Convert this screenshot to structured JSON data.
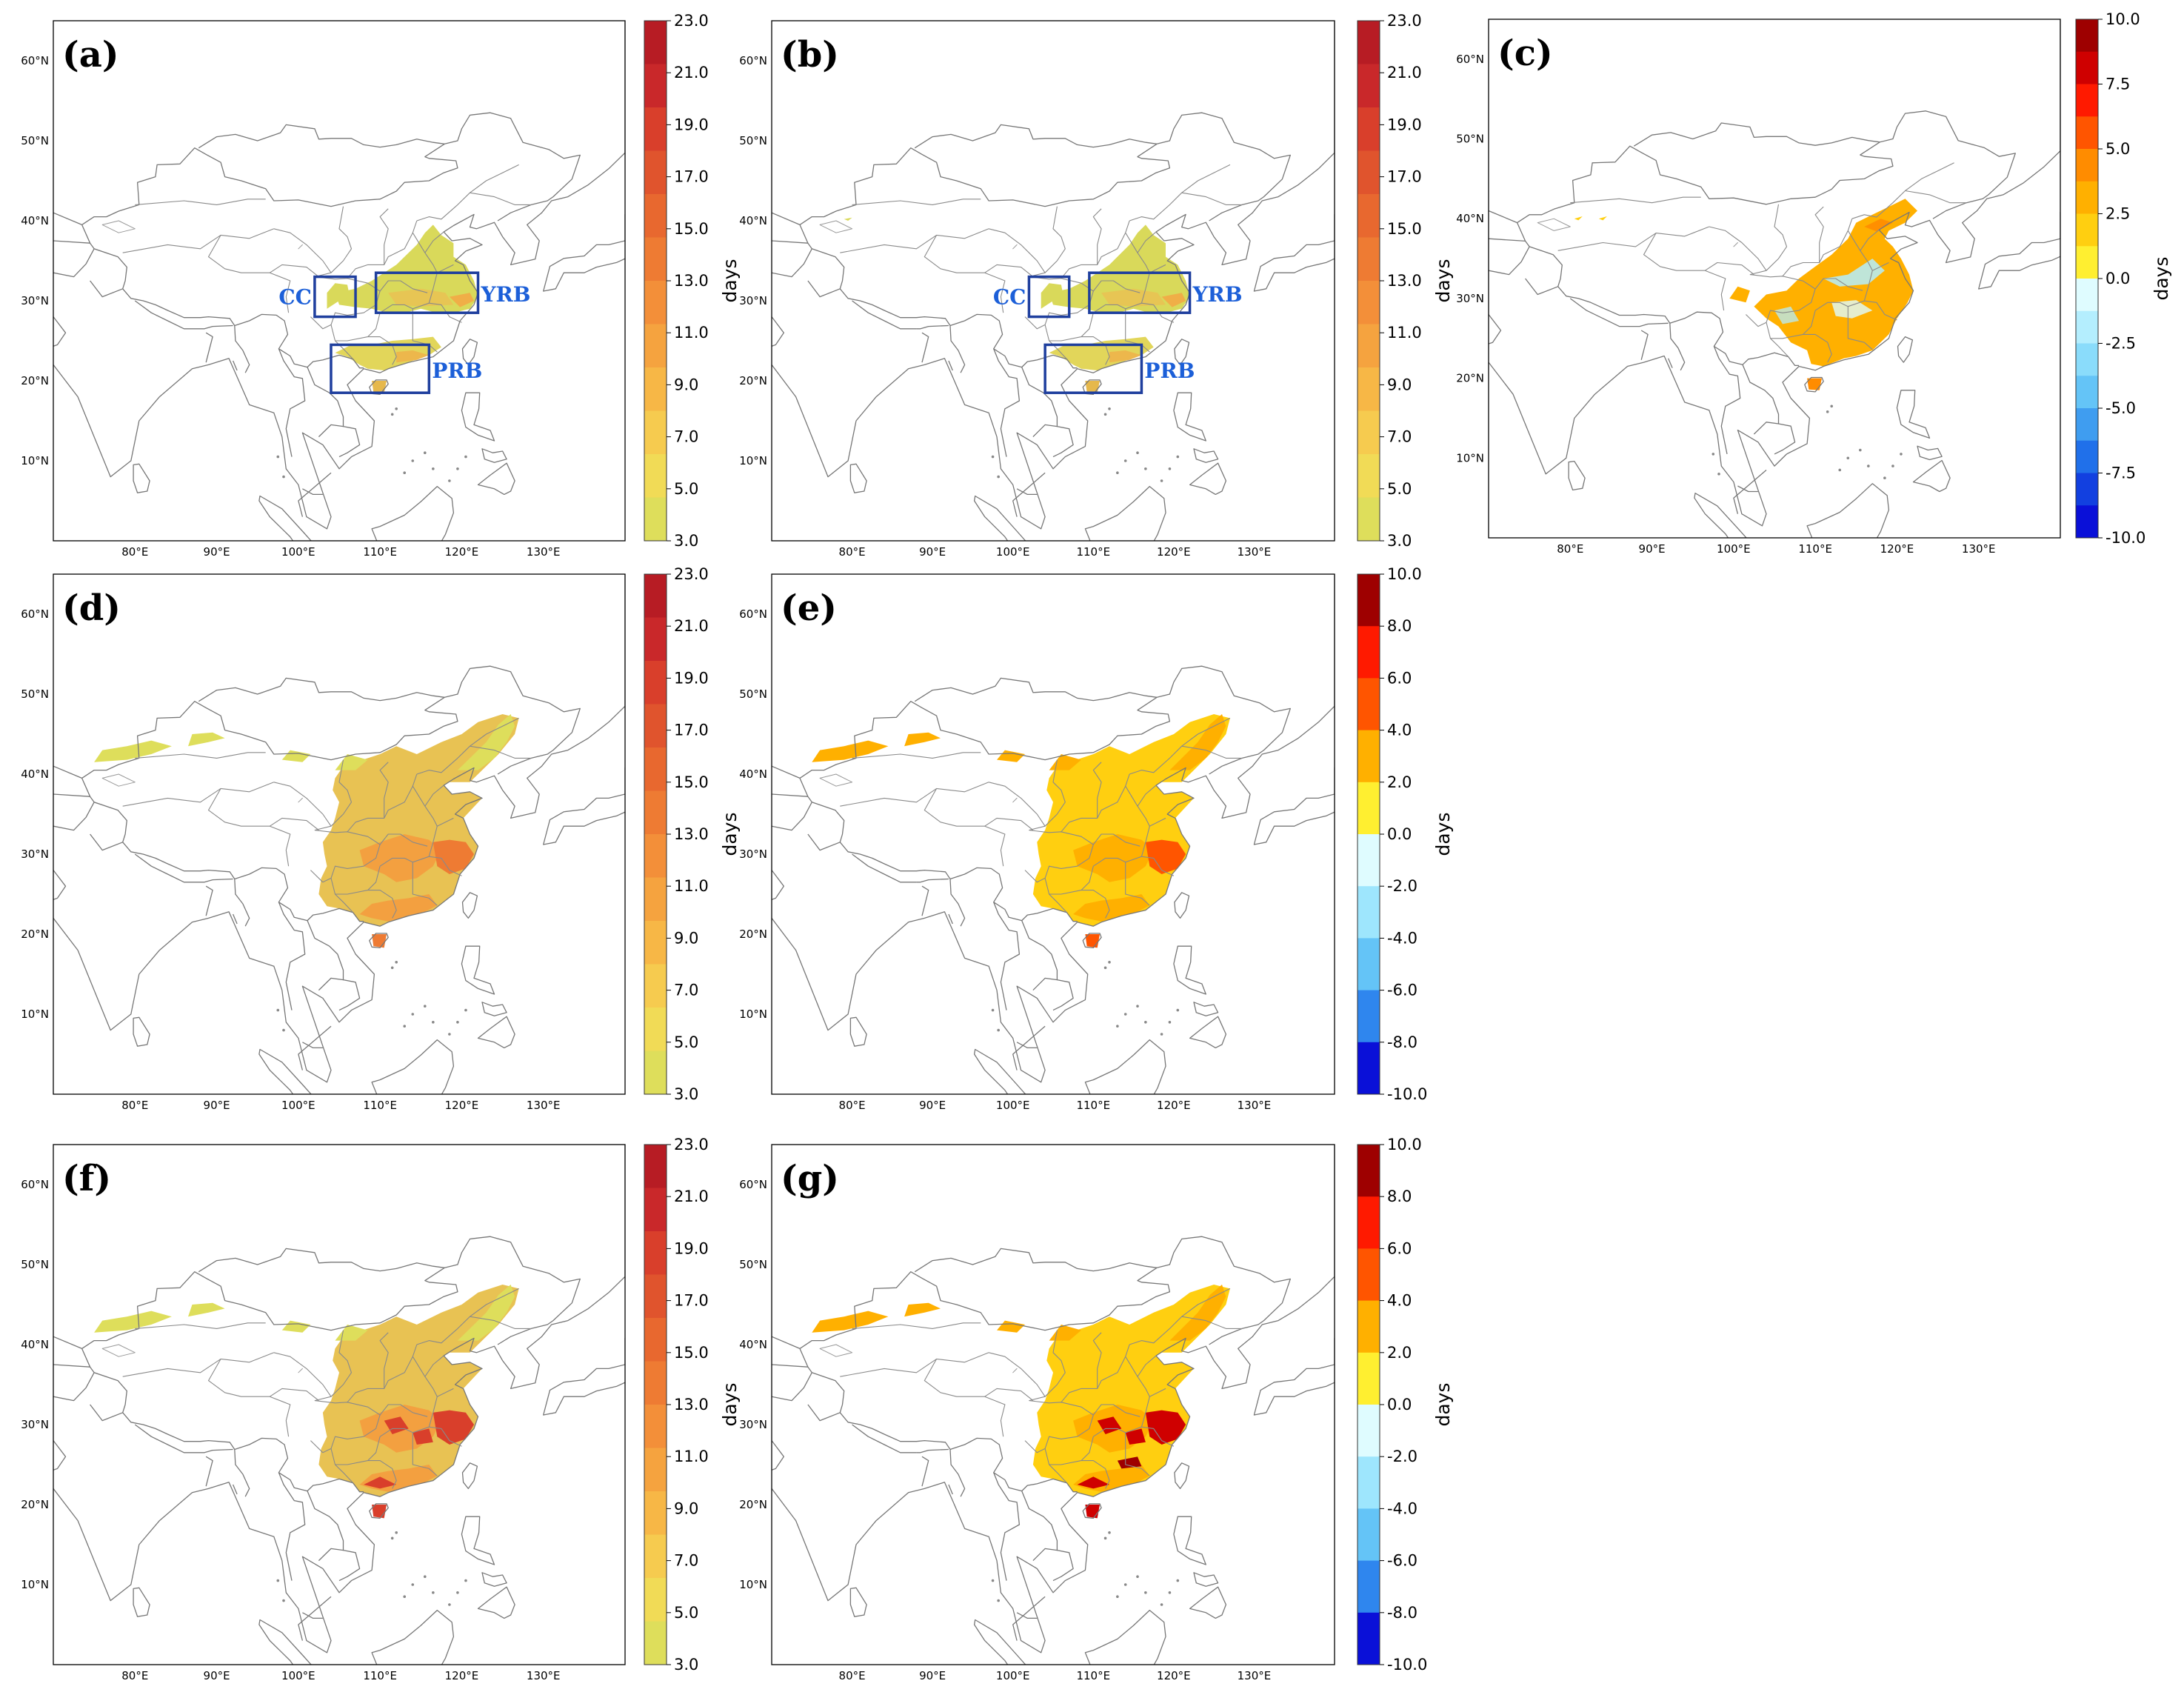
{
  "figure": {
    "panels": [
      {
        "id": "a",
        "label": "(a)",
        "colorbar": "abs",
        "regions": true
      },
      {
        "id": "b",
        "label": "(b)",
        "colorbar": "abs",
        "regions": true
      },
      {
        "id": "c",
        "label": "(c)",
        "colorbar": "diff25",
        "regions": false
      },
      {
        "id": "d",
        "label": "(d)",
        "colorbar": "abs",
        "regions": false
      },
      {
        "id": "e",
        "label": "(e)",
        "colorbar": "diff2",
        "regions": false
      },
      {
        "id": "f",
        "label": "(f)",
        "colorbar": "abs",
        "regions": false
      },
      {
        "id": "g",
        "label": "(g)",
        "colorbar": "diff2",
        "regions": false
      }
    ],
    "lon_ticks": [
      "80°E",
      "90°E",
      "100°E",
      "110°E",
      "120°E",
      "130°E"
    ],
    "lat_ticks": [
      "60°N",
      "50°N",
      "40°N",
      "30°N",
      "20°N",
      "10°N"
    ],
    "colorbar_unit": "days",
    "colorbars": {
      "abs": {
        "ticks": [
          "23.0",
          "21.0",
          "19.0",
          "17.0",
          "15.0",
          "13.0",
          "11.0",
          "9.0",
          "7.0",
          "5.0",
          "3.0"
        ],
        "colors": [
          "#b71c24",
          "#c9282a",
          "#d93f2b",
          "#e0542d",
          "#e8682f",
          "#ee7b33",
          "#f38f39",
          "#f5a33f",
          "#f7b746",
          "#f6cb4f",
          "#f1db56",
          "#dede5b"
        ]
      },
      "diff25": {
        "ticks": [
          "10.0",
          "7.5",
          "5.0",
          "2.5",
          "0.0",
          "-2.5",
          "-5.0",
          "-7.5",
          "-10.0"
        ],
        "colors": [
          "#9e0000",
          "#cf0000",
          "#ff1a00",
          "#ff5500",
          "#ff8c00",
          "#ffb000",
          "#ffcf10",
          "#ffef30",
          "#dffcff",
          "#b4eefe",
          "#8adcfb",
          "#64c4f7",
          "#3f9df0",
          "#2070ea",
          "#1240e0",
          "#0a10d8"
        ]
      },
      "diff2": {
        "ticks": [
          "10.0",
          "8.0",
          "6.0",
          "4.0",
          "2.0",
          "0.0",
          "-2.0",
          "-4.0",
          "-6.0",
          "-8.0",
          "-10.0"
        ],
        "colors": [
          "#9e0000",
          "#ff1a00",
          "#ff5500",
          "#ffb000",
          "#ffef30",
          "#dffcff",
          "#9ee6fd",
          "#64c4f7",
          "#2f86ee",
          "#0a10d8"
        ]
      }
    },
    "regions": [
      {
        "name": "CC",
        "lon": [
          102,
          107
        ],
        "lat": [
          28,
          33
        ]
      },
      {
        "name": "YRB",
        "lon": [
          109.5,
          122
        ],
        "lat": [
          28.5,
          33.5
        ]
      },
      {
        "name": "PRB",
        "lon": [
          104,
          116
        ],
        "lat": [
          18.5,
          24.5
        ]
      }
    ]
  }
}
